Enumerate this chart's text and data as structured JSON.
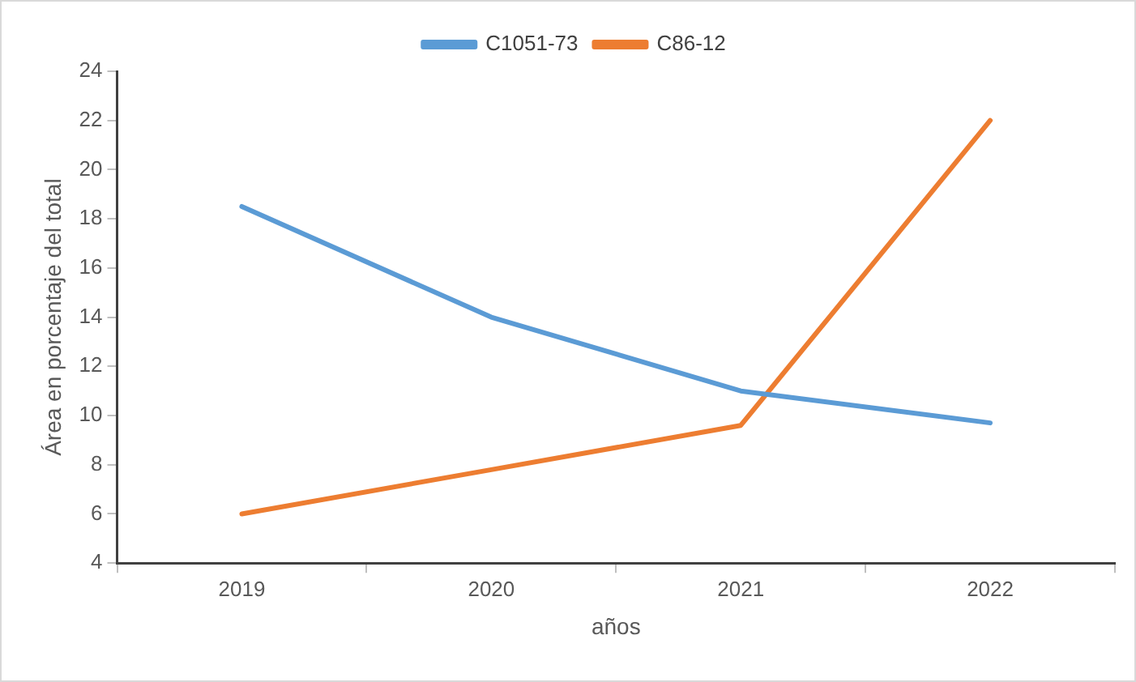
{
  "chart_data": {
    "type": "line",
    "xlabel": "años",
    "ylabel": "Área en porcentaje del total",
    "categories": [
      "2019",
      "2020",
      "2021",
      "2022"
    ],
    "series": [
      {
        "name": "C1051-73",
        "color": "#5b9bd5",
        "values": [
          18.5,
          14,
          11,
          9.7
        ]
      },
      {
        "name": "C86-12",
        "color": "#ed7d31",
        "values": [
          6,
          7.8,
          9.6,
          22
        ]
      }
    ],
    "ylim": [
      4,
      24
    ],
    "yticks": [
      4,
      6,
      8,
      10,
      12,
      14,
      16,
      18,
      20,
      22,
      24
    ],
    "grid": false,
    "legend": "top",
    "marker": "none",
    "line_style": "solid"
  }
}
